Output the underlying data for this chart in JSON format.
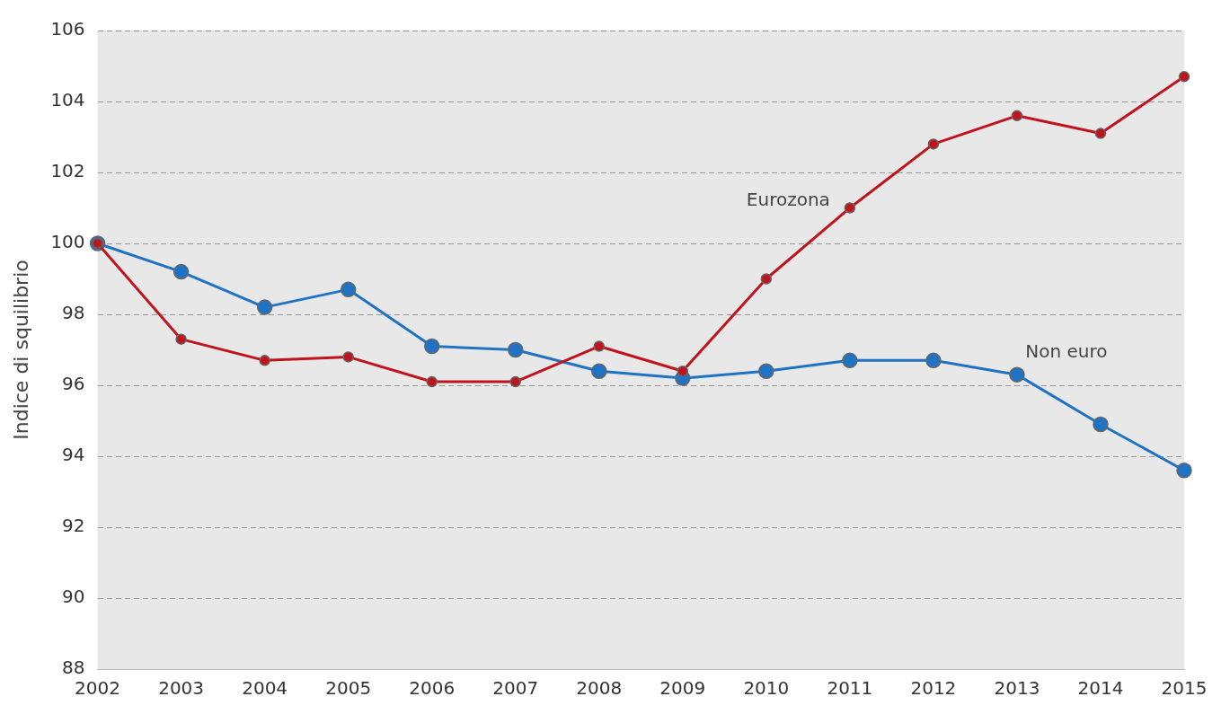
{
  "chart_data": {
    "type": "line",
    "ylabel": "Indice di squilibrio",
    "categories": [
      "2002",
      "2003",
      "2004",
      "2005",
      "2006",
      "2007",
      "2008",
      "2009",
      "2010",
      "2011",
      "2012",
      "2013",
      "2014",
      "2015"
    ],
    "series": [
      {
        "name": "Eurozona",
        "color": "#c0141c",
        "values": [
          100,
          97.3,
          96.7,
          96.8,
          96.1,
          96.1,
          97.1,
          96.4,
          99.0,
          101.0,
          102.8,
          103.6,
          103.1,
          104.7
        ]
      },
      {
        "name": "Non euro",
        "color": "#1f72c4",
        "values": [
          100,
          99.2,
          98.2,
          98.7,
          97.1,
          97.0,
          96.4,
          96.2,
          96.4,
          96.7,
          96.7,
          96.3,
          94.9,
          93.6
        ]
      }
    ],
    "ylim": [
      88,
      106
    ],
    "yticks": [
      88,
      90,
      92,
      94,
      96,
      98,
      100,
      102,
      104,
      106
    ],
    "grid": "y",
    "legend": false,
    "marker": "circle",
    "line_style": "solid"
  }
}
